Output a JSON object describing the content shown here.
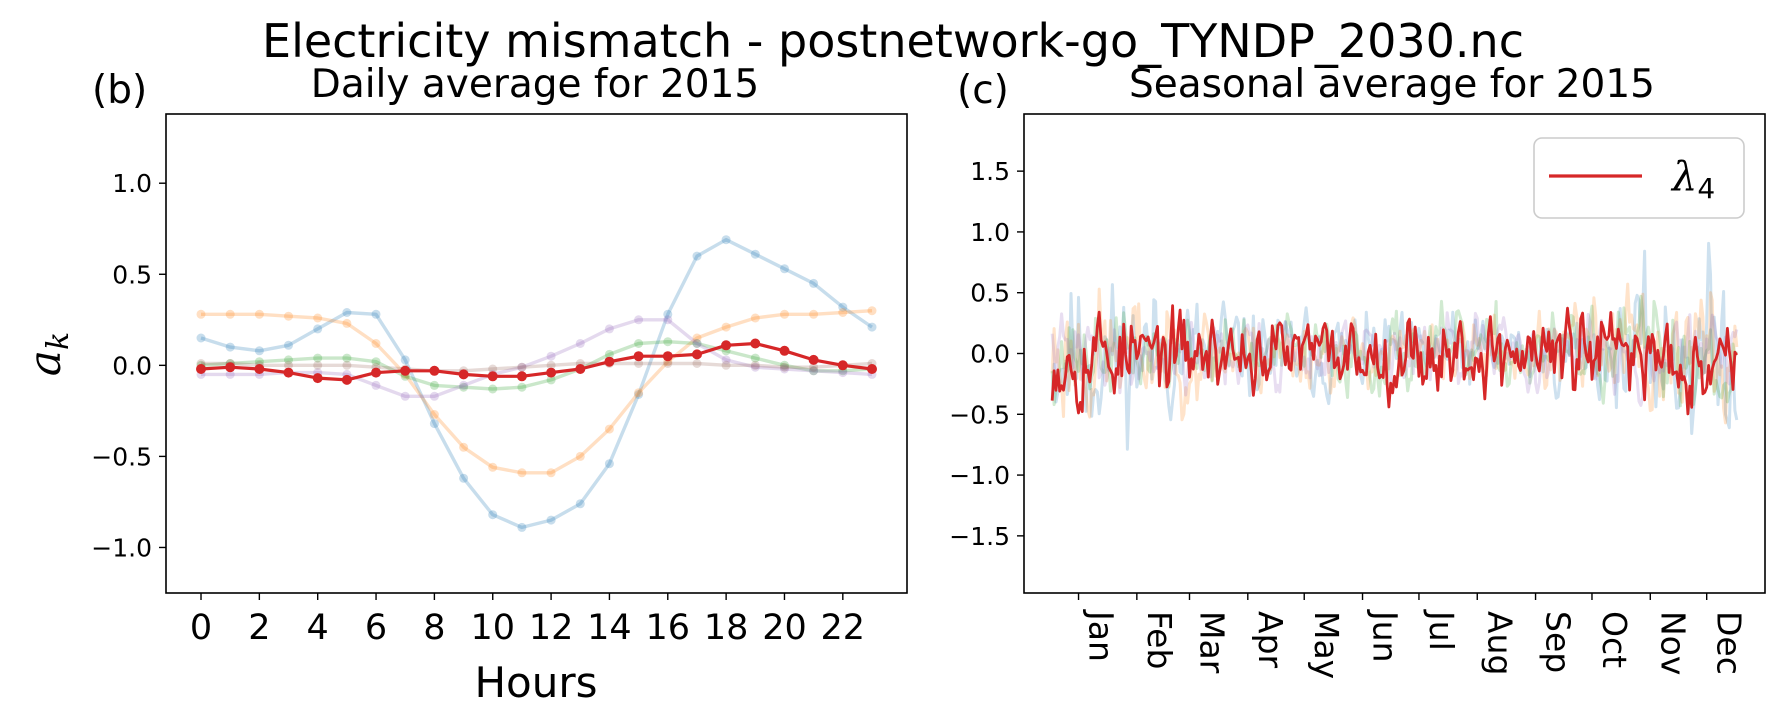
{
  "figure": {
    "title": "Electricity mismatch - postnetwork-go_TYNDP_2030.nc"
  },
  "chart_data": [
    {
      "type": "line",
      "panel_label": "(b)",
      "title": "Daily average for 2015",
      "xlabel": "Hours",
      "ylabel": "a",
      "ylabel_sub": "k",
      "xlim": [
        -1.2,
        24.2
      ],
      "ylim": [
        -1.25,
        1.38
      ],
      "xticks": [
        "0",
        "2",
        "4",
        "6",
        "8",
        "10",
        "12",
        "14",
        "16",
        "18",
        "20",
        "22"
      ],
      "xtick_values": [
        0,
        2,
        4,
        6,
        8,
        10,
        12,
        14,
        16,
        18,
        20,
        22
      ],
      "yticks": [
        "1.0",
        "0.5",
        "0.0",
        "−0.5",
        "−1.0"
      ],
      "ytick_values": [
        1.0,
        0.5,
        0.0,
        -0.5,
        -1.0
      ],
      "grid": false,
      "x": [
        0,
        1,
        2,
        3,
        4,
        5,
        6,
        7,
        8,
        9,
        10,
        11,
        12,
        13,
        14,
        15,
        16,
        17,
        18,
        19,
        20,
        21,
        22,
        23
      ],
      "series": [
        {
          "color": "#1f77b4",
          "opacity": 0.25,
          "values": [
            0.15,
            0.1,
            0.08,
            0.11,
            0.2,
            0.29,
            0.28,
            0.03,
            -0.32,
            -0.62,
            -0.82,
            -0.89,
            -0.85,
            -0.76,
            -0.54,
            -0.16,
            0.28,
            0.6,
            0.69,
            0.61,
            0.53,
            0.45,
            0.32,
            0.21
          ]
        },
        {
          "color": "#ff7f0e",
          "opacity": 0.25,
          "values": [
            0.28,
            0.28,
            0.28,
            0.27,
            0.26,
            0.23,
            0.12,
            -0.05,
            -0.27,
            -0.45,
            -0.56,
            -0.59,
            -0.59,
            -0.5,
            -0.35,
            -0.15,
            0.02,
            0.15,
            0.21,
            0.26,
            0.28,
            0.28,
            0.29,
            0.3
          ]
        },
        {
          "color": "#2ca02c",
          "opacity": 0.25,
          "values": [
            0.0,
            0.01,
            0.02,
            0.03,
            0.04,
            0.04,
            0.02,
            -0.06,
            -0.11,
            -0.12,
            -0.13,
            -0.12,
            -0.08,
            -0.02,
            0.06,
            0.12,
            0.13,
            0.12,
            0.08,
            0.04,
            0.0,
            -0.03,
            -0.03,
            -0.02
          ]
        },
        {
          "color": "#9467bd",
          "opacity": 0.25,
          "values": [
            -0.05,
            -0.05,
            -0.05,
            -0.04,
            -0.04,
            -0.05,
            -0.11,
            -0.17,
            -0.17,
            -0.11,
            -0.05,
            -0.01,
            0.05,
            0.12,
            0.2,
            0.25,
            0.25,
            0.12,
            0.03,
            -0.01,
            -0.02,
            -0.03,
            -0.04,
            -0.05
          ]
        },
        {
          "color": "#8c564b",
          "opacity": 0.22,
          "values": [
            0.01,
            0.01,
            0.0,
            0.0,
            0.0,
            0.0,
            -0.01,
            -0.02,
            -0.03,
            -0.03,
            -0.02,
            -0.01,
            0.0,
            0.01,
            0.01,
            0.01,
            0.01,
            0.01,
            0.0,
            0.0,
            -0.01,
            -0.01,
            0.0,
            0.01
          ]
        },
        {
          "color": "#d62728",
          "opacity": 1.0,
          "values": [
            -0.02,
            -0.01,
            -0.02,
            -0.04,
            -0.07,
            -0.08,
            -0.04,
            -0.03,
            -0.03,
            -0.05,
            -0.06,
            -0.06,
            -0.04,
            -0.02,
            0.02,
            0.05,
            0.05,
            0.06,
            0.11,
            0.12,
            0.08,
            0.03,
            0.0,
            -0.02
          ]
        }
      ]
    },
    {
      "type": "line",
      "panel_label": "(c)",
      "title": "Seasonal average for 2015",
      "xlim": [
        -14,
        380
      ],
      "ylim": [
        -1.97,
        1.97
      ],
      "yticks": [
        "1.5",
        "1.0",
        "0.5",
        "0.0",
        "−0.5",
        "−1.0",
        "−1.5"
      ],
      "ytick_values": [
        1.5,
        1.0,
        0.5,
        0.0,
        -0.5,
        -1.0,
        -1.5
      ],
      "xticks": [
        "Jan",
        "Feb",
        "Mar",
        "Apr",
        "May",
        "Jun",
        "Jul",
        "Aug",
        "Sep",
        "Oct",
        "Nov",
        "Dec"
      ],
      "xtick_days": [
        15,
        46,
        74,
        105,
        135,
        166,
        196,
        227,
        258,
        288,
        319,
        349
      ],
      "x_range_days": [
        1,
        365
      ],
      "grid": false,
      "legend": {
        "position": "top-right",
        "label": "λ",
        "label_sub": "4",
        "color": "#d62728"
      },
      "series": [
        {
          "color": "#1f77b4",
          "opacity": 0.22,
          "amplitude": 0.48,
          "envelope": [
            0.9,
            0.8,
            0.6,
            0.5,
            0.45,
            0.4,
            0.35,
            0.4,
            0.4,
            0.5,
            0.8,
            1.0
          ],
          "seed": 11
        },
        {
          "color": "#ff7f0e",
          "opacity": 0.22,
          "amplitude": 0.4,
          "envelope": [
            0.9,
            0.7,
            0.6,
            0.5,
            0.45,
            0.4,
            0.4,
            0.45,
            0.5,
            0.7,
            0.9,
            1.0
          ],
          "seed": 23
        },
        {
          "color": "#2ca02c",
          "opacity": 0.22,
          "amplitude": 0.28,
          "envelope": [
            0.8,
            0.7,
            0.7,
            0.7,
            0.7,
            0.7,
            0.7,
            0.7,
            0.7,
            0.8,
            0.9,
            1.0
          ],
          "seed": 37
        },
        {
          "color": "#9467bd",
          "opacity": 0.22,
          "amplitude": 0.18,
          "envelope": [
            1,
            1,
            1,
            1,
            1,
            1,
            1,
            1,
            1,
            1,
            1,
            1
          ],
          "seed": 41
        },
        {
          "color": "#d62728",
          "opacity": 1.0,
          "amplitude": 0.22,
          "envelope": [
            1.2,
            1.0,
            0.9,
            0.9,
            0.8,
            0.9,
            0.9,
            1.0,
            1.1,
            1.0,
            1.0,
            1.2
          ],
          "seed": 53
        }
      ]
    }
  ]
}
